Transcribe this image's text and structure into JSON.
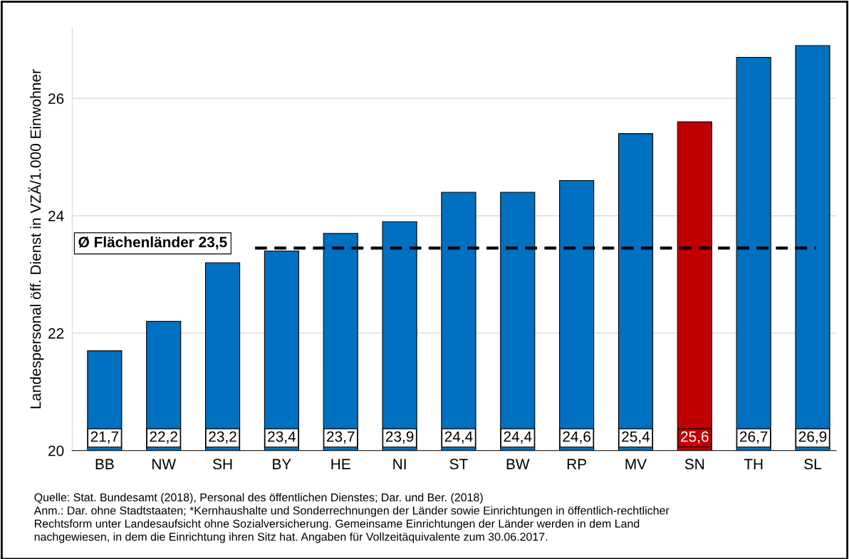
{
  "chart_data": {
    "type": "bar",
    "ylabel": "Landespersonal öff. Dienst in VZÄ/1.000 Einwohner",
    "categories": [
      "BB",
      "NW",
      "SH",
      "BY",
      "HE",
      "NI",
      "ST",
      "BW",
      "RP",
      "MV",
      "SN",
      "TH",
      "SL"
    ],
    "values": [
      21.7,
      22.2,
      23.2,
      23.4,
      23.7,
      23.9,
      24.4,
      24.4,
      24.6,
      25.4,
      25.6,
      26.7,
      26.9
    ],
    "value_labels": [
      "21,7",
      "22,2",
      "23,2",
      "23,4",
      "23,7",
      "23,9",
      "24,4",
      "24,4",
      "24,6",
      "25,4",
      "25,6",
      "26,7",
      "26,9"
    ],
    "colors": [
      "#0070c0",
      "#0070c0",
      "#0070c0",
      "#0070c0",
      "#0070c0",
      "#0070c0",
      "#0070c0",
      "#0070c0",
      "#0070c0",
      "#0070c0",
      "#c00000",
      "#0070c0",
      "#0070c0"
    ],
    "ylim": [
      20,
      27.2
    ],
    "yticks": [
      20,
      22,
      24,
      26
    ],
    "grid": "y",
    "ref_lines": [
      {
        "axis": "y",
        "value": 23.45,
        "label": "Ø Flächenländer 23,5",
        "color": "#000000",
        "line_style": "dashed"
      }
    ],
    "annotations": [
      "Quelle: Stat. Bundesamt (2018), Personal des öffentlichen Dienstes; Dar. und Ber. (2018)",
      "Anm.: Dar. ohne Stadtstaaten; *Kernhaushalte und Sonderrechnungen der Länder sowie Einrichtungen in öffentlich-rechtlicher",
      "Rechtsform unter Landesaufsicht ohne Sozialversicherung. Gemeinsame Einrichtungen der Länder werden in dem Land",
      "nachgewiesen, in dem die Einrichtung ihren Sitz hat. Angaben für Vollzeitäquivalente zum 30.06.2017."
    ]
  }
}
